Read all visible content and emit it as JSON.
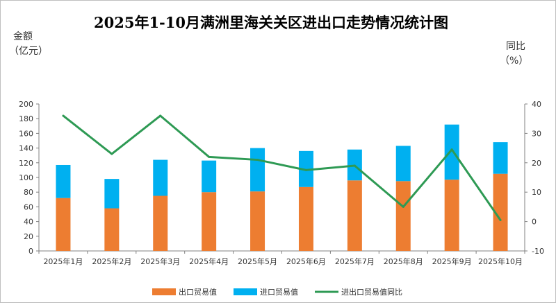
{
  "chart_data": {
    "type": "bar",
    "title": "2025年1-10月满洲里海关关区进出口走势情况统计图",
    "left_axis_label": [
      "金额",
      "（亿元）"
    ],
    "right_axis_label": [
      "同比",
      "（%）"
    ],
    "categories": [
      "2025年1月",
      "2025年2月",
      "2025年3月",
      "2025年4月",
      "2025年5月",
      "2025年6月",
      "2025年7月",
      "2025年8月",
      "2025年9月",
      "2025年10月"
    ],
    "left_ylim": [
      0,
      200
    ],
    "left_ticks": [
      0,
      20,
      40,
      60,
      80,
      100,
      120,
      140,
      160,
      180,
      200
    ],
    "right_ylim": [
      -10,
      40
    ],
    "right_ticks": [
      -10,
      0,
      10,
      20,
      30,
      40
    ],
    "stacked": true,
    "grid": false,
    "legend_position": "bottom",
    "series": [
      {
        "name": "出口贸易值",
        "kind": "bar",
        "axis": "left",
        "color": "#ED7D31",
        "values": [
          72,
          58,
          75,
          80,
          81,
          87,
          96,
          95,
          97,
          105
        ]
      },
      {
        "name": "进口贸易值",
        "kind": "bar",
        "axis": "left",
        "color": "#00B0F0",
        "values": [
          45,
          40,
          49,
          43,
          59,
          49,
          42,
          48,
          75,
          43
        ]
      },
      {
        "name": "进出口贸易值同比",
        "kind": "line",
        "axis": "right",
        "color": "#2E9A54",
        "values": [
          36,
          23,
          36,
          22,
          21,
          17.5,
          19,
          5,
          24.5,
          0.5
        ]
      }
    ]
  }
}
